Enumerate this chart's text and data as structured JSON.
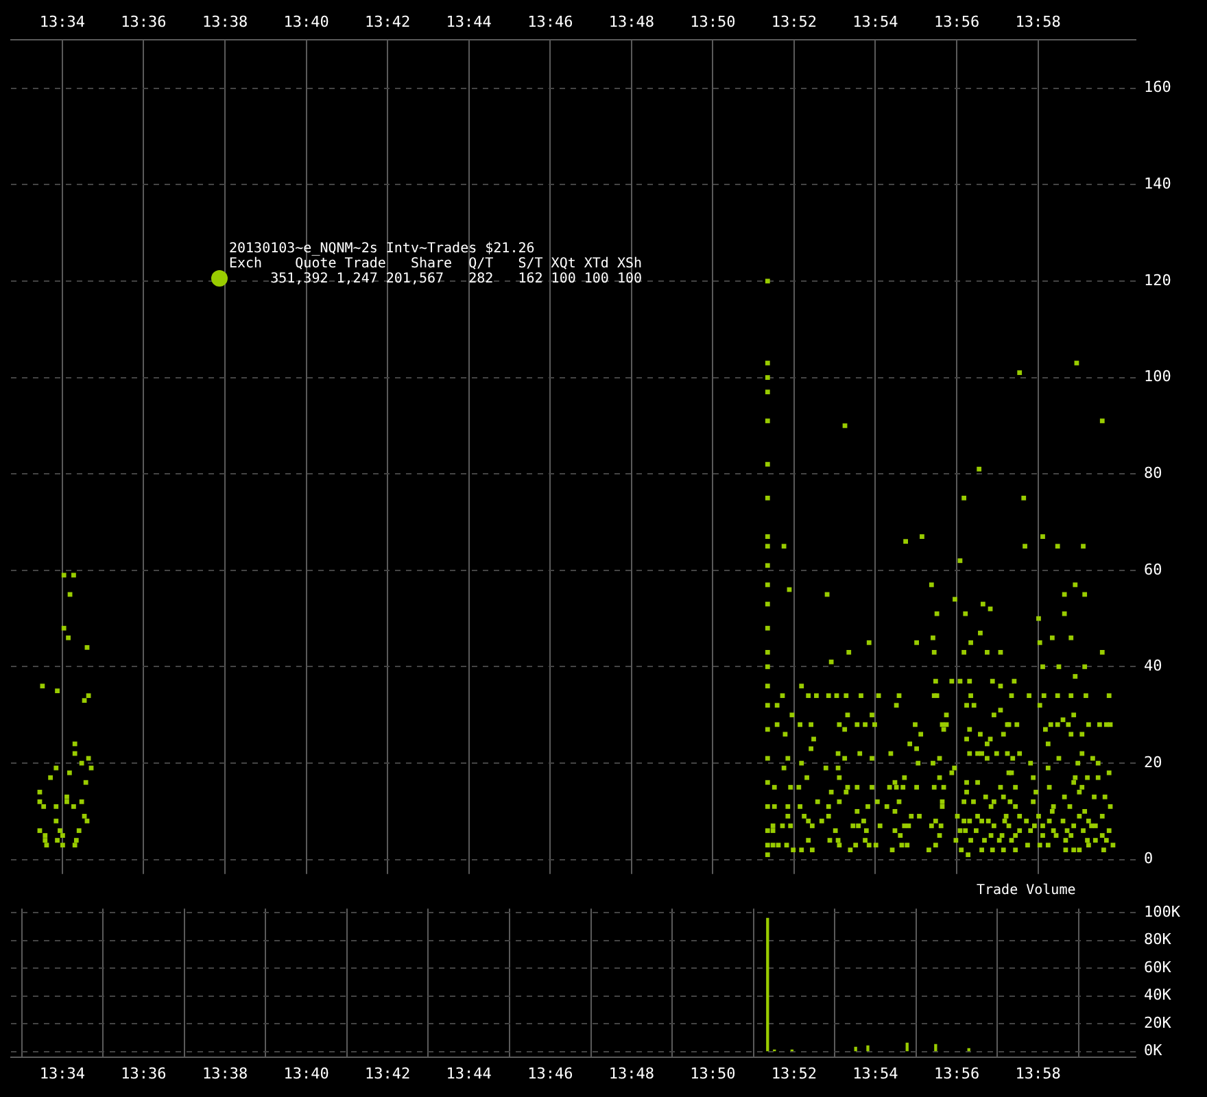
{
  "chart_data": [
    {
      "type": "scatter",
      "xlim": [
        13.5456,
        14.0067
      ],
      "xticks": [
        {
          "value": 13.56667,
          "label": "13:34"
        },
        {
          "value": 13.6,
          "label": "13:36"
        },
        {
          "value": 13.63333,
          "label": "13:38"
        },
        {
          "value": 13.66667,
          "label": "13:40"
        },
        {
          "value": 13.7,
          "label": "13:42"
        },
        {
          "value": 13.73333,
          "label": "13:44"
        },
        {
          "value": 13.76667,
          "label": "13:46"
        },
        {
          "value": 13.8,
          "label": "13:48"
        },
        {
          "value": 13.83333,
          "label": "13:50"
        },
        {
          "value": 13.86667,
          "label": "13:52"
        },
        {
          "value": 13.9,
          "label": "13:54"
        },
        {
          "value": 13.93333,
          "label": "13:56"
        },
        {
          "value": 13.96667,
          "label": "13:58"
        }
      ],
      "ylim": [
        -3,
        170
      ],
      "yticks": [
        0,
        20,
        40,
        60,
        80,
        100,
        120,
        140,
        160
      ],
      "grid": true,
      "marker": "square",
      "annotations": [
        "20130103~e_NQNM~2s Intv~Trades $21.26",
        "Exch    Quote Trade   Share  Q/T   S/T XQt XTd XSh",
        "     351,392 1,247 201,567   282   162 100 100 100"
      ],
      "series": [
        {
          "color": "#99cc00",
          "x": [
            13.5673,
            13.5713,
            13.5698,
            13.5673,
            13.5691,
            13.5768,
            13.5585,
            13.5646,
            13.5774,
            13.5757,
            13.5718,
            13.5718,
            13.5774,
            13.5746,
            13.5785,
            13.5641,
            13.5763,
            13.5696,
            13.5618,
            13.5574,
            13.5574,
            13.5685,
            13.5685,
            13.5713,
            13.5746,
            13.559,
            13.5641,
            13.5757,
            13.5768,
            13.5641,
            13.5574,
            13.5657,
            13.5735,
            13.5596,
            13.5668,
            13.5596,
            13.5646,
            13.5724,
            13.5602,
            13.5668,
            13.5718,
            13.8558,
            13.8558,
            13.8558,
            13.8558,
            13.8558,
            13.8558,
            13.8558,
            13.8558,
            13.8558,
            13.8558,
            13.8625,
            13.8875,
            13.9124,
            13.9191,
            13.923,
            13.9347,
            13.9425,
            13.9363,
            13.9591,
            13.9608,
            13.9613,
            13.9686,
            13.9747,
            13.9825,
            13.9852,
            13.993,
            13.9819,
            13.9775,
            13.9858,
            13.8647,
            13.8802,
            13.8558,
            13.8558,
            13.8558,
            13.8558,
            13.8558,
            13.8558,
            13.8558,
            13.8558,
            13.8558,
            13.8558,
            13.8558,
            13.8558,
            13.8558,
            13.8558,
            13.9326,
            13.9441,
            13.9471,
            13.9252,
            13.9669,
            13.9369,
            13.9775,
            13.943,
            13.9725,
            13.9802,
            13.8974,
            13.9169,
            13.9236,
            13.9391,
            13.9674,
            13.9241,
            13.9363,
            13.9458,
            13.9513,
            13.993,
            13.8891,
            13.8819,
            13.9686,
            13.9752,
            13.9858,
            13.9819,
            13.8697,
            13.9247,
            13.9313,
            13.9347,
            13.9386,
            13.948,
            13.9513,
            13.9569,
            13.8619,
            13.8725,
            13.8758,
            13.8808,
            13.8841,
            13.888,
            13.8941,
            13.9097,
            13.9241,
            13.9391,
            13.9558,
            13.963,
            13.9691,
            13.9747,
            13.9802,
            13.9863,
            13.9958,
            13.9013,
            13.9252,
            13.9086,
            13.9374,
            13.9404,
            13.9674,
            13.8597,
            13.8658,
            13.8886,
            13.8986,
            13.9291,
            13.9486,
            13.9513,
            13.9813,
            13.8597,
            13.8691,
            13.8736,
            13.8852,
            13.8925,
            13.8958,
            13.8997,
            13.9163,
            13.9274,
            13.9541,
            13.958,
            13.9719,
            13.9747,
            13.9791,
            13.9874,
            13.9919,
            13.9963,
            13.9769,
            13.9947,
            13.9291,
            13.9547,
            13.8874,
            13.928,
            13.9186,
            13.9386,
            13.943,
            13.9525,
            13.863,
            13.9697,
            13.9708,
            13.8747,
            13.9141,
            13.9169,
            13.9458,
            13.9471,
            13.9374,
            13.9802,
            13.9847,
            13.8736,
            13.8847,
            13.8936,
            13.9386,
            13.9419,
            13.9436,
            13.9591,
            13.9847,
            13.9063,
            13.8874,
            13.8986,
            13.9263,
            13.9458,
            13.9497,
            13.9541,
            13.8641,
            13.9752,
            13.9891,
            13.8697,
            13.9175,
            13.9236,
            13.9563,
            13.8797,
            13.8625,
            13.9324,
            13.9636,
            13.9708,
            13.983,
            13.9913,
            13.8847,
            13.9313,
            13.9263,
            13.8852,
            13.9547,
            13.9558,
            13.9647,
            13.9819,
            13.9869,
            13.9913,
            13.9958,
            13.8719,
            13.9119,
            13.908,
            13.9374,
            13.9419,
            13.9813,
            13.8586,
            13.9169,
            13.9513,
            13.9713,
            13.9847,
            13.8652,
            13.8686,
            13.8886,
            13.8925,
            13.8986,
            13.9058,
            13.9086,
            13.9113,
            13.9241,
            13.928,
            13.9374,
            13.9574,
            13.9836,
            13.8819,
            13.888,
            13.9452,
            13.9525,
            13.9658,
            13.9775,
            13.9897,
            13.9941,
            13.9097,
            13.8852,
            13.9274,
            13.9363,
            13.9486,
            13.9552,
            13.9647,
            13.8586,
            13.8641,
            13.8691,
            13.8763,
            13.8808,
            13.8969,
            13.9008,
            13.9047,
            13.9274,
            13.9402,
            13.9474,
            13.9574,
            13.973,
            13.9797,
            13.9963,
            13.8708,
            13.8925,
            13.908,
            13.9419,
            13.9536,
            13.9591,
            13.9725,
            13.9858,
            13.8641,
            13.8808,
            13.9147,
            13.918,
            13.9336,
            13.9669,
            13.9836,
            13.993,
            13.8725,
            13.878,
            13.8952,
            13.9247,
            13.9363,
            13.953,
            13.9619,
            13.9713,
            13.9769,
            13.9874,
            13.858,
            13.8619,
            13.8652,
            13.8908,
            13.893,
            13.9019,
            13.9136,
            13.923,
            13.9386,
            13.9436,
            13.9463,
            13.9486,
            13.9547,
            13.9652,
            13.9686,
            13.9813,
            13.9902,
            13.9958,
            13.858,
            13.8741,
            13.8836,
            13.8963,
            13.908,
            13.9119,
            13.9269,
            13.9369,
            13.9413,
            13.9591,
            13.9636,
            13.973,
            13.9786,
            13.9852,
            13.9886,
            13.9263,
            13.9347,
            13.9474,
            13.9519,
            13.9574,
            13.9686,
            13.9741,
            13.9802,
            13.993,
            13.8725,
            13.8813,
            13.8847,
            13.8958,
            13.9102,
            13.933,
            13.9391,
            13.9447,
            13.9508,
            13.9558,
            13.9674,
            13.978,
            13.9869,
            13.9902,
            13.9947,
            13.858,
            13.8602,
            13.8636,
            13.8663,
            13.8697,
            13.8741,
            13.8852,
            13.8897,
            13.8919,
            13.8974,
            13.9002,
            13.9069,
            13.9108,
            13.913,
            13.9219,
            13.9247,
            13.9352,
            13.938,
            13.9436,
            13.948,
            13.9525,
            13.9574,
            13.9624,
            13.9708,
            13.978,
            13.9836,
            13.9874,
            13.9936,
            13.9974,
            13.9813
          ],
          "values": [
            59,
            59,
            55,
            48,
            46,
            44,
            36,
            35,
            34,
            33,
            24,
            22,
            21,
            20,
            19,
            19,
            16,
            18,
            17,
            14,
            12,
            13,
            12,
            11,
            12,
            11,
            11,
            9,
            8,
            8,
            6,
            6,
            6,
            5,
            5,
            4,
            4,
            4,
            3,
            3,
            3,
            120,
            103,
            100,
            97,
            91,
            82,
            75,
            67,
            65,
            61,
            65,
            90,
            66,
            67,
            57,
            62,
            81,
            75,
            101,
            75,
            65,
            67,
            65,
            103,
            65,
            91,
            57,
            55,
            55,
            56,
            55,
            57,
            53,
            48,
            43,
            40,
            36,
            32,
            27,
            21,
            16,
            11,
            6,
            3,
            1,
            54,
            53,
            52,
            51,
            50,
            51,
            51,
            47,
            46,
            46,
            45,
            45,
            46,
            45,
            45,
            43,
            43,
            43,
            43,
            43,
            43,
            41,
            40,
            40,
            40,
            38,
            36,
            37,
            37,
            37,
            37,
            37,
            36,
            37,
            34,
            34,
            34,
            34,
            34,
            34,
            34,
            34,
            34,
            34,
            34,
            34,
            34,
            34,
            34,
            34,
            34,
            34,
            34,
            32,
            32,
            32,
            32,
            32,
            30,
            30,
            30,
            30,
            30,
            31,
            30,
            28,
            28,
            28,
            28,
            28,
            28,
            28,
            28,
            28,
            28,
            28,
            28,
            28,
            28,
            28,
            28,
            28,
            29,
            28,
            28,
            28,
            27,
            27,
            26,
            27,
            26,
            26,
            26,
            27,
            24,
            25,
            24,
            23,
            24,
            25,
            25,
            26,
            26,
            23,
            22,
            22,
            22,
            22,
            22,
            22,
            22,
            22,
            21,
            21,
            21,
            21,
            22,
            22,
            21,
            21,
            21,
            20,
            20,
            20,
            21,
            19,
            19,
            19,
            20,
            19,
            20,
            20,
            19,
            18,
            17,
            17,
            18,
            18,
            17,
            17,
            17,
            17,
            18,
            17,
            17,
            16,
            16,
            16,
            16,
            15,
            15,
            15,
            15,
            15,
            15,
            15,
            15,
            15,
            15,
            15,
            15,
            15,
            15,
            15,
            14,
            15,
            14,
            14,
            14,
            13,
            13,
            14,
            13,
            13,
            13,
            12,
            12,
            12,
            12,
            12,
            12,
            12,
            11,
            11,
            11,
            12,
            11,
            11,
            12,
            11,
            11,
            12,
            11,
            11,
            11,
            11,
            11,
            9,
            10,
            10,
            9,
            9,
            9,
            10,
            10,
            9,
            9,
            9,
            9,
            9,
            9,
            9,
            9,
            8,
            8,
            8,
            8,
            8,
            8,
            8,
            8,
            8,
            8,
            7,
            7,
            7,
            7,
            7,
            7,
            7,
            7,
            8,
            8,
            8,
            7,
            7,
            7,
            7,
            7,
            7,
            6,
            6,
            7,
            6,
            6,
            6,
            7,
            7,
            6,
            6,
            6,
            6,
            6,
            6,
            6,
            7,
            5,
            6,
            5,
            5,
            5,
            5,
            5,
            5,
            5,
            4,
            4,
            4,
            4,
            5,
            4,
            4,
            4,
            4,
            4,
            3,
            4,
            4,
            4,
            4,
            3,
            3,
            3,
            2,
            2,
            2,
            3,
            2,
            3,
            3,
            3,
            2,
            3,
            3,
            2,
            3,
            2,
            1,
            2,
            2,
            2,
            2,
            3,
            3,
            2,
            2,
            3,
            2,
            3,
            2
          ]
        }
      ]
    },
    {
      "type": "bar",
      "title": "Trade Volume",
      "xlim": [
        13.5456,
        14.0067
      ],
      "xticks": [
        {
          "value": 13.56667,
          "label": "13:34"
        },
        {
          "value": 13.6,
          "label": "13:36"
        },
        {
          "value": 13.63333,
          "label": "13:38"
        },
        {
          "value": 13.66667,
          "label": "13:40"
        },
        {
          "value": 13.7,
          "label": "13:42"
        },
        {
          "value": 13.73333,
          "label": "13:44"
        },
        {
          "value": 13.76667,
          "label": "13:46"
        },
        {
          "value": 13.8,
          "label": "13:48"
        },
        {
          "value": 13.83333,
          "label": "13:50"
        },
        {
          "value": 13.86667,
          "label": "13:52"
        },
        {
          "value": 13.9,
          "label": "13:54"
        },
        {
          "value": 13.93333,
          "label": "13:56"
        },
        {
          "value": 13.96667,
          "label": "13:58"
        }
      ],
      "ylim": [
        -4000,
        103000
      ],
      "yticks": [
        {
          "value": 0,
          "label": "0K"
        },
        {
          "value": 20000,
          "label": "20K"
        },
        {
          "value": 40000,
          "label": "40K"
        },
        {
          "value": 60000,
          "label": "60K"
        },
        {
          "value": 80000,
          "label": "80K"
        },
        {
          "value": 100000,
          "label": "100K"
        }
      ],
      "grid": true,
      "series": [
        {
          "color": "#99cc00",
          "x": [
            13.8558,
            13.8586,
            13.8658,
            13.8919,
            13.8969,
            13.913,
            13.9247,
            13.9383
          ],
          "values": [
            96000,
            1000,
            1000,
            3000,
            4000,
            6000,
            5000,
            2000
          ]
        }
      ]
    }
  ]
}
